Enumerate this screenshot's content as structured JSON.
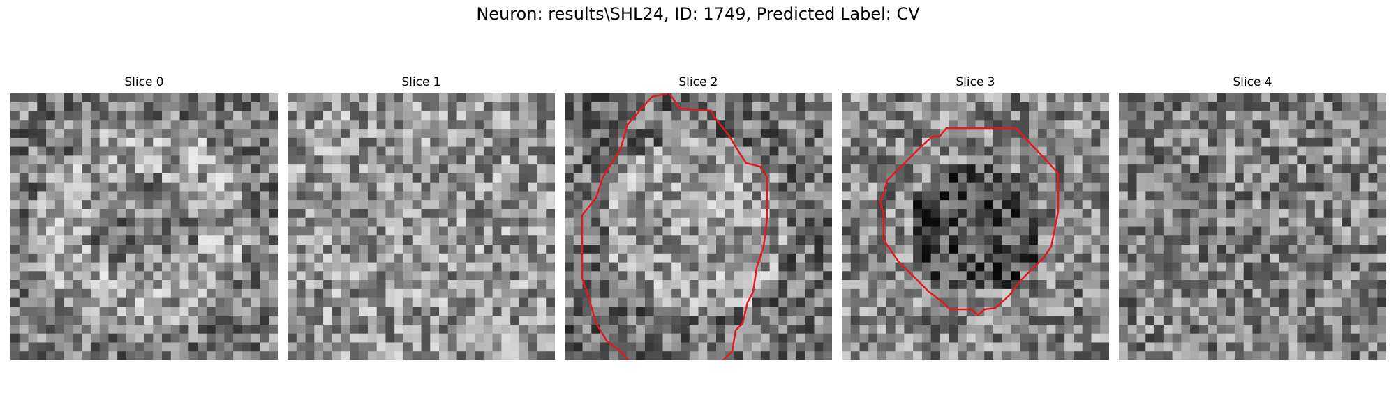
{
  "figure": {
    "title": "Neuron: results\\SHL24, ID: 1749, Predicted Label: CV"
  },
  "panels": [
    {
      "title": "Slice 0",
      "seed": 11,
      "base": 135,
      "contour": false
    },
    {
      "title": "Slice 1",
      "seed": 23,
      "base": 150,
      "contour": false
    },
    {
      "title": "Slice 2",
      "seed": 37,
      "base": 140,
      "contour": true
    },
    {
      "title": "Slice 3",
      "seed": 41,
      "base": 120,
      "contour": true
    },
    {
      "title": "Slice 4",
      "seed": 53,
      "base": 130,
      "contour": false
    }
  ],
  "contour_color": "#e31a1c",
  "colormap": "gray"
}
